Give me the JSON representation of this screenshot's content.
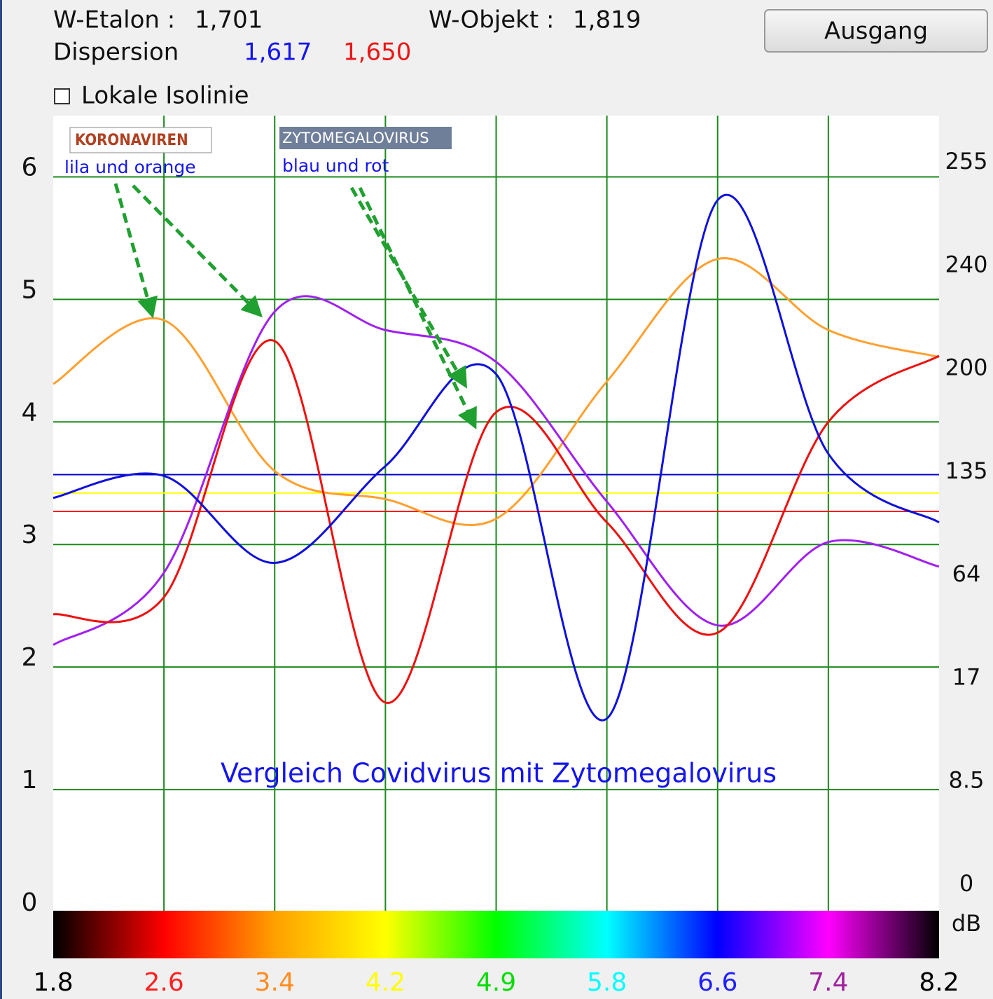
{
  "header": {
    "w_etalon_label": "W-Etalon :",
    "w_etalon_value": "1,701",
    "w_objekt_label": "W-Objekt :",
    "w_objekt_value": "1,819",
    "dispersion_label": "Dispersion",
    "dispersion_blue": "1,617",
    "dispersion_red": "1,650",
    "exit_button": "Ausgang",
    "checkbox_label": "Lokale Isolinie"
  },
  "chart_data": {
    "type": "line",
    "title": "Vergleich Covidvirus mit Zytomegalovirus",
    "annotations": [
      {
        "title": "KORONAVIREN",
        "text": "lila und orange"
      },
      {
        "title": "ZYTOMEGALOVIRUS",
        "text": "blau und rot"
      }
    ],
    "categories": [
      "1.8",
      "2.6",
      "3.4",
      "4.2",
      "4.9",
      "5.8",
      "6.6",
      "7.4",
      "8.2"
    ],
    "category_colors": [
      "#000000",
      "#ff2020",
      "#ff8c20",
      "#ffff00",
      "#00dd00",
      "#00ffff",
      "#2020ff",
      "#a020a0",
      "#000000"
    ],
    "ylim": [
      0,
      6.5
    ],
    "yticks": [
      0,
      1,
      2,
      3,
      4,
      5,
      6
    ],
    "grid": true,
    "right_labels": [
      255,
      240,
      200,
      135,
      64,
      17,
      8.5,
      0
    ],
    "right_unit": "dB",
    "reference_lines": [
      {
        "color": "#0000cc",
        "value": 3.57
      },
      {
        "color": "#ffff00",
        "value": 3.42
      },
      {
        "color": "#ff0000",
        "value": 3.27
      }
    ],
    "series": [
      {
        "color": "#ffa030",
        "values": [
          4.31,
          4.83,
          3.6,
          3.37,
          3.21,
          4.33,
          5.33,
          4.75,
          4.53
        ]
      },
      {
        "color": "#a020f0",
        "values": [
          2.18,
          2.77,
          4.9,
          4.75,
          4.49,
          3.35,
          2.34,
          3.02,
          2.82
        ]
      },
      {
        "color": "#ee1010",
        "values": [
          2.43,
          2.57,
          4.66,
          1.71,
          4.08,
          3.18,
          2.28,
          4.0,
          4.54
        ]
      },
      {
        "color": "#1010dd",
        "values": [
          3.38,
          3.56,
          2.85,
          3.64,
          4.39,
          1.58,
          5.81,
          3.74,
          3.18
        ]
      }
    ]
  }
}
